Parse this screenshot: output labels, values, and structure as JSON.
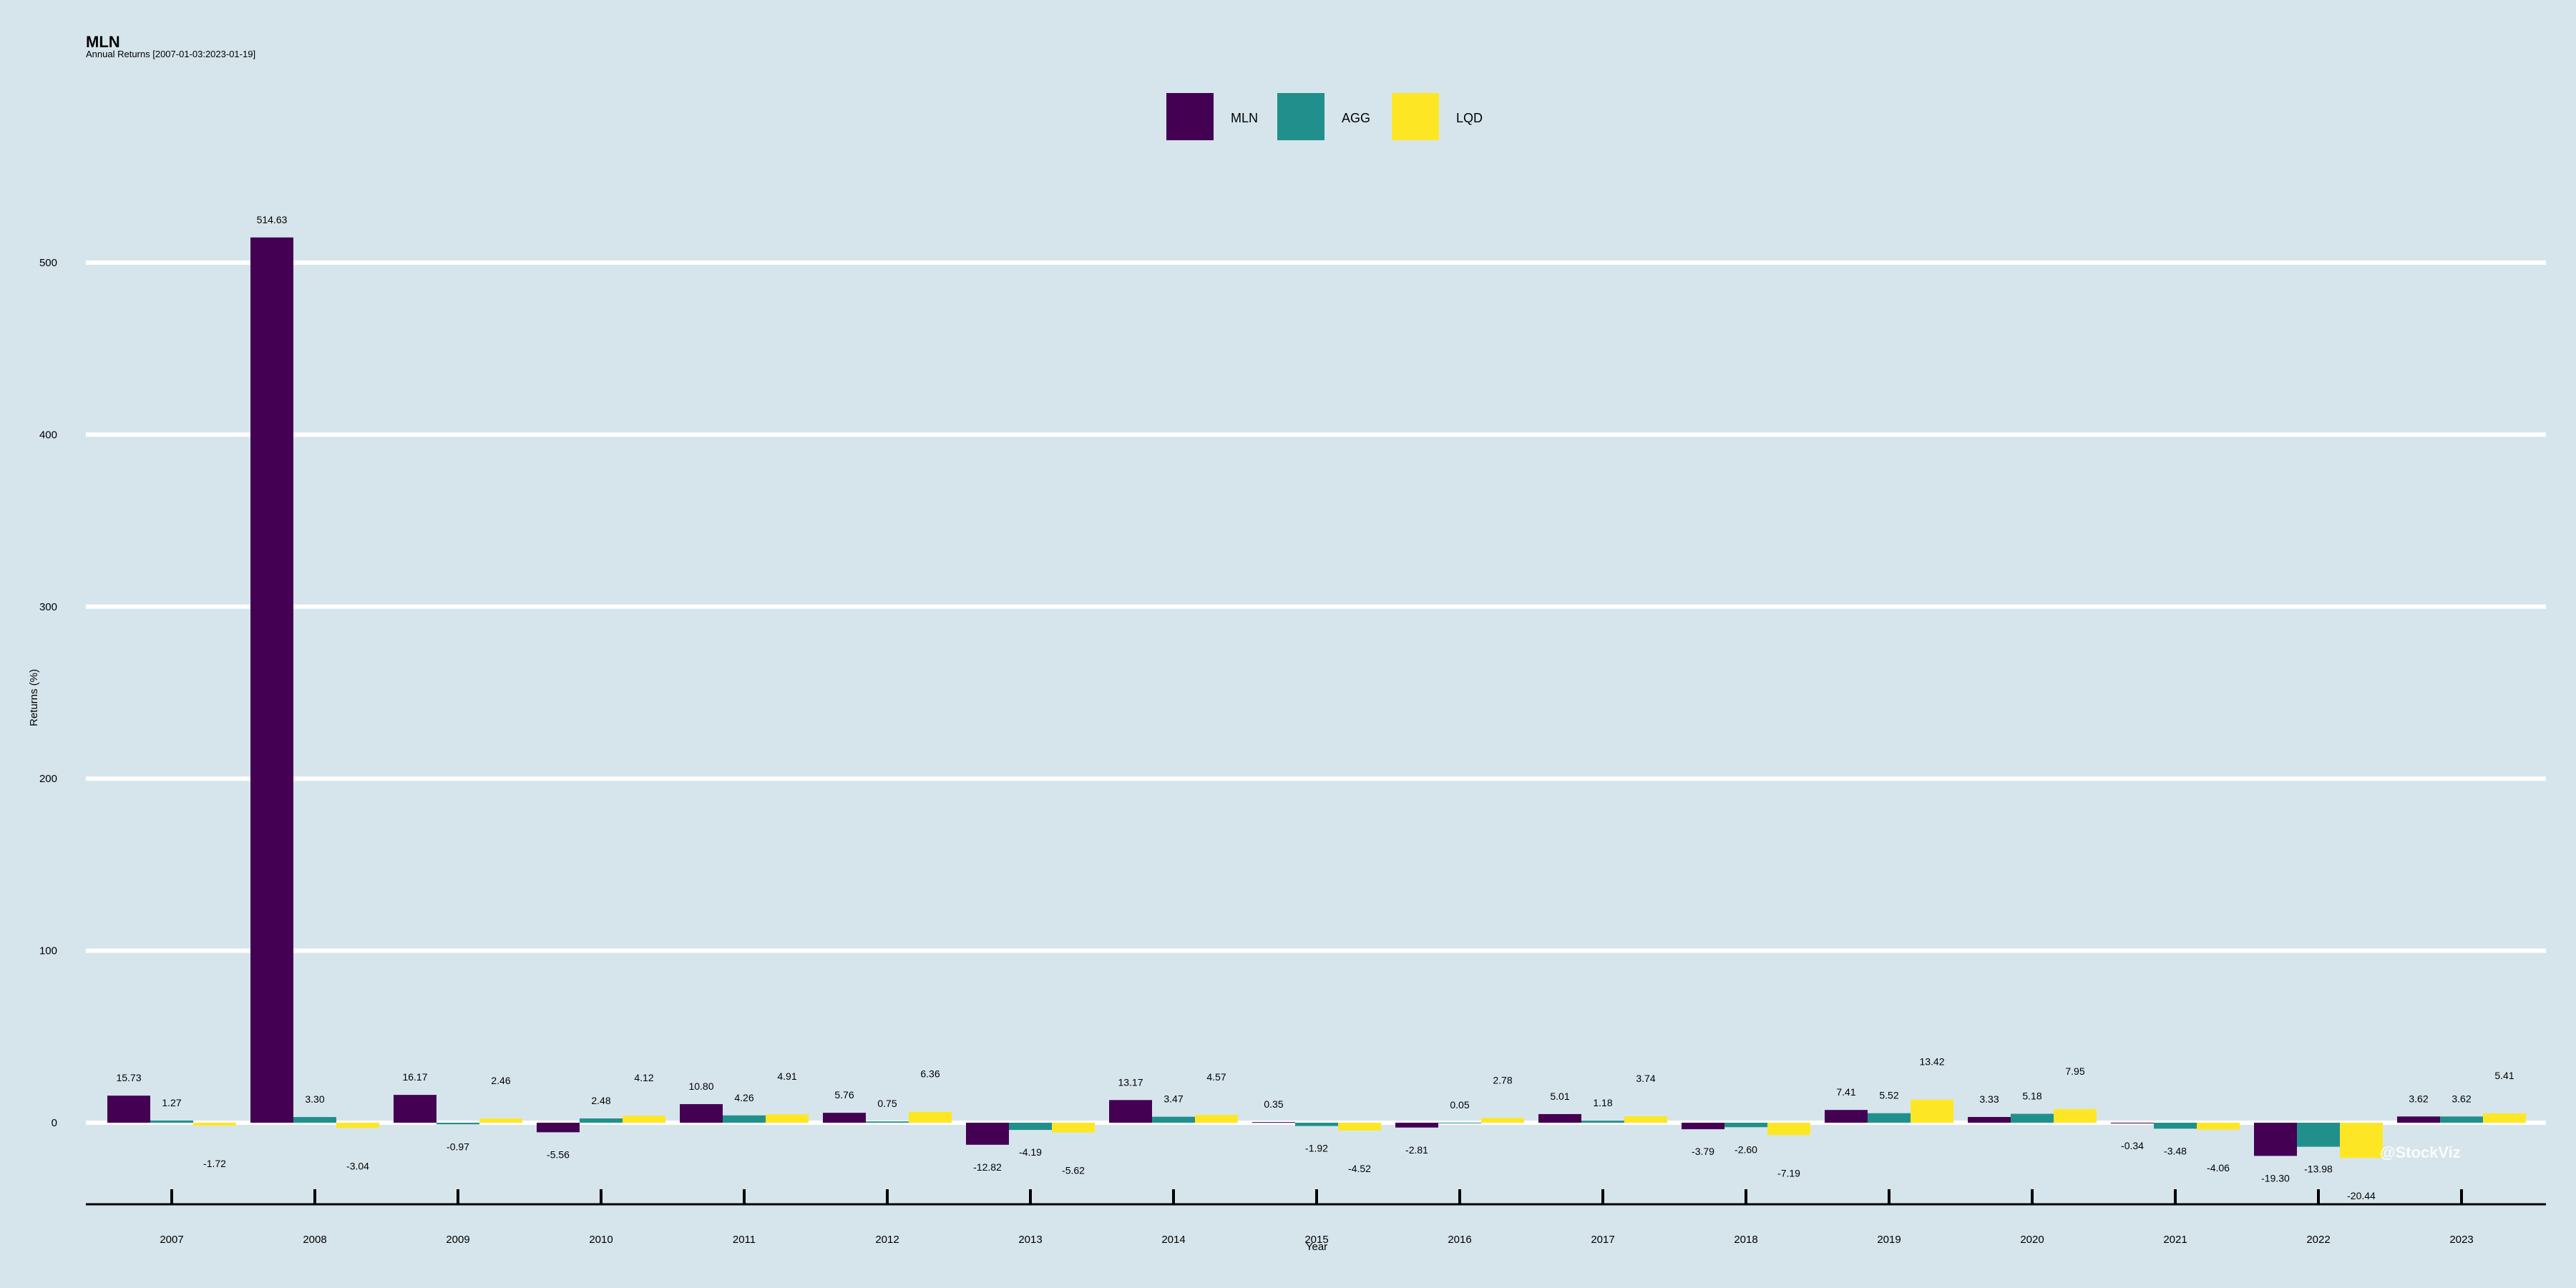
{
  "chart_data": {
    "type": "bar",
    "title": "MLN",
    "subtitle": "Annual Returns [2007-01-03:2023-01-19]",
    "xlabel": "Year",
    "ylabel": "Returns (%)",
    "ylim": [
      -60,
      540
    ],
    "yticks": [
      0,
      100,
      200,
      300,
      400,
      500
    ],
    "grid": true,
    "legend_position": "top-center",
    "categories": [
      "2007",
      "2008",
      "2009",
      "2010",
      "2011",
      "2012",
      "2013",
      "2014",
      "2015",
      "2016",
      "2017",
      "2018",
      "2019",
      "2020",
      "2021",
      "2022",
      "2023"
    ],
    "series": [
      {
        "name": "MLN",
        "color": "#440154",
        "values": [
          15.73,
          514.63,
          16.17,
          -5.56,
          10.8,
          5.76,
          -12.82,
          13.17,
          0.35,
          -2.81,
          5.01,
          -3.79,
          7.41,
          3.33,
          -0.34,
          -19.3,
          3.62
        ]
      },
      {
        "name": "AGG",
        "color": "#21908c",
        "values": [
          1.27,
          3.3,
          -0.97,
          2.48,
          4.26,
          0.75,
          -4.19,
          3.47,
          -1.92,
          0.05,
          1.18,
          -2.6,
          5.52,
          5.18,
          -3.48,
          -13.98,
          3.62
        ]
      },
      {
        "name": "LQD",
        "color": "#fde725",
        "values": [
          -1.72,
          -3.04,
          2.46,
          4.12,
          4.91,
          6.36,
          -5.62,
          4.57,
          -4.52,
          2.78,
          3.74,
          -7.19,
          13.42,
          7.95,
          -4.06,
          -20.44,
          5.41
        ]
      }
    ],
    "watermark": "@StockViz"
  }
}
